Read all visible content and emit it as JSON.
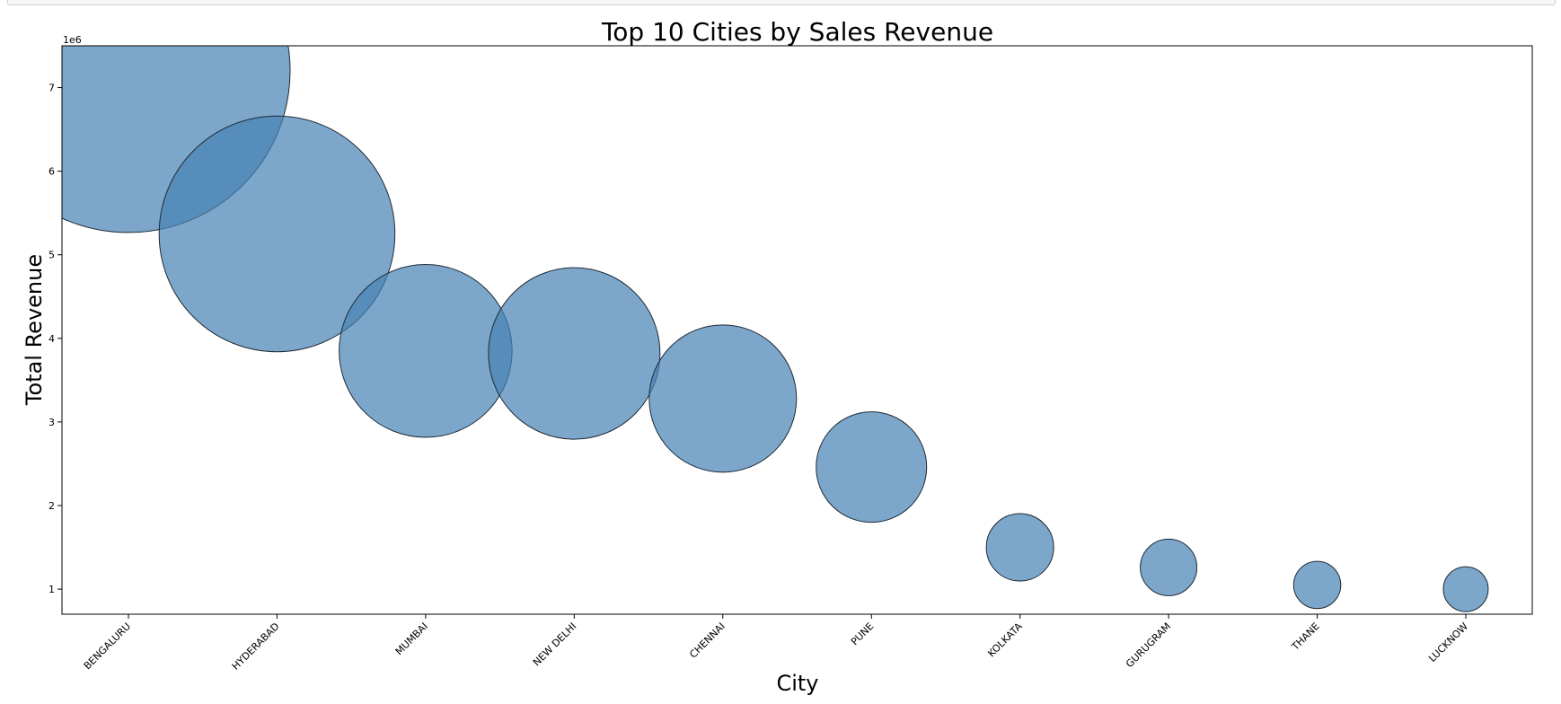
{
  "chart_data": {
    "type": "scatter",
    "title": "Top 10 Cities by Sales Revenue",
    "xlabel": "City",
    "ylabel": "Total Revenue",
    "y_offset_label": "1e6",
    "y_scale_factor": 1000000,
    "categories": [
      "BENGALURU",
      "HYDERABAD",
      "MUMBAI",
      "NEW DELHI",
      "CHENNAI",
      "PUNE",
      "KOLKATA",
      "GURUGRAM",
      "THANE",
      "LUCKNOW"
    ],
    "values": [
      7200000,
      5250000,
      3850000,
      3820000,
      3280000,
      2460000,
      1500000,
      1260000,
      1050000,
      1000000
    ],
    "y_ticks": [
      1,
      2,
      3,
      4,
      5,
      6,
      7
    ],
    "ylim": [
      700000,
      7500000
    ],
    "grid": false,
    "legend": "none",
    "marker_color": "#4682b4",
    "marker_alpha": 0.7,
    "marker_edge_color": "#1f2a36"
  }
}
